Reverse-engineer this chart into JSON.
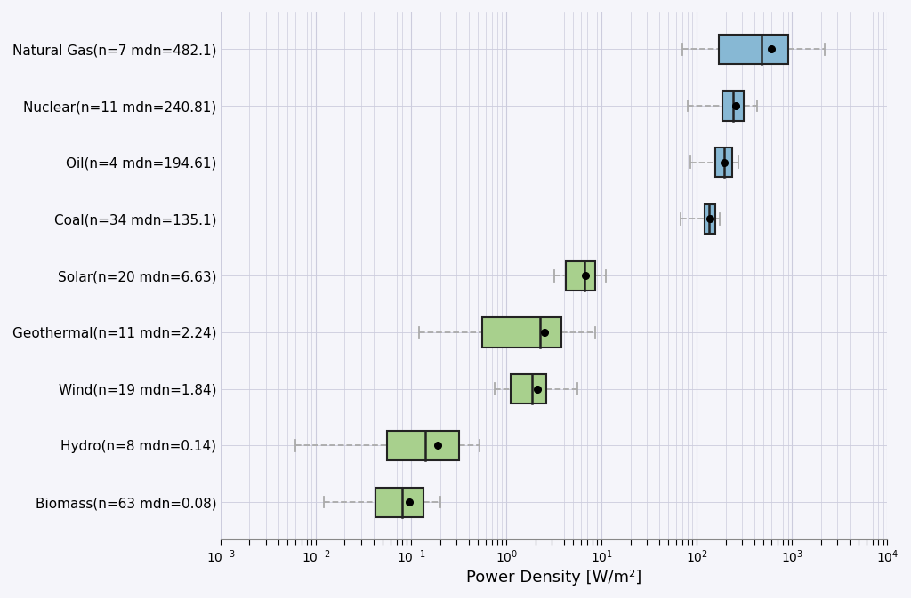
{
  "categories": [
    "Natural Gas(n=7 mdn=482.1)",
    "Nuclear(n=11 mdn=240.81)",
    "Oil(n=4 mdn=194.61)",
    "Coal(n=34 mdn=135.1)",
    "Solar(n=20 mdn=6.63)",
    "Geothermal(n=11 mdn=2.24)",
    "Wind(n=19 mdn=1.84)",
    "Hydro(n=8 mdn=0.14)",
    "Biomass(n=63 mdn=0.08)"
  ],
  "colors": [
    "#87b8d4",
    "#87b8d4",
    "#87b8d4",
    "#87b8d4",
    "#a8d08d",
    "#a8d08d",
    "#a8d08d",
    "#a8d08d",
    "#a8d08d"
  ],
  "boxes": [
    {
      "q1": 170,
      "median": 482.1,
      "q3": 900,
      "whislo": 70,
      "whishi": 2200,
      "mean": 600
    },
    {
      "q1": 185,
      "median": 240.81,
      "q3": 310,
      "whislo": 80,
      "whishi": 430,
      "mean": 255
    },
    {
      "q1": 155,
      "median": 194.61,
      "q3": 235,
      "whislo": 85,
      "whishi": 270,
      "mean": 195
    },
    {
      "q1": 120,
      "median": 135.1,
      "q3": 155,
      "whislo": 68,
      "whishi": 175,
      "mean": 138
    },
    {
      "q1": 4.2,
      "median": 6.63,
      "q3": 8.5,
      "whislo": 3.2,
      "whishi": 11.0,
      "mean": 6.8
    },
    {
      "q1": 0.55,
      "median": 2.24,
      "q3": 3.8,
      "whislo": 0.12,
      "whishi": 8.5,
      "mean": 2.5
    },
    {
      "q1": 1.1,
      "median": 1.84,
      "q3": 2.6,
      "whislo": 0.75,
      "whishi": 5.5,
      "mean": 2.1
    },
    {
      "q1": 0.055,
      "median": 0.14,
      "q3": 0.32,
      "whislo": 0.006,
      "whishi": 0.52,
      "mean": 0.19
    },
    {
      "q1": 0.042,
      "median": 0.08,
      "q3": 0.135,
      "whislo": 0.012,
      "whishi": 0.2,
      "mean": 0.095
    }
  ],
  "xlabel": "Power Density [W/m²]",
  "background_color": "#f5f5fa",
  "grid_color": "#ccccdd",
  "whisker_color": "#aaaaaa",
  "edge_color": "#222222",
  "label_fontsize": 11,
  "xlabel_fontsize": 13
}
